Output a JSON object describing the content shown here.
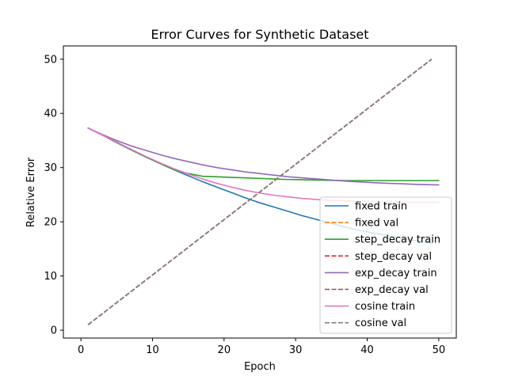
{
  "chart_data": {
    "type": "line",
    "title": "Error Curves for Synthetic Dataset",
    "xlabel": "Epoch",
    "ylabel": "Relative Error",
    "xlim": [
      -2.45,
      52.45
    ],
    "ylim": [
      -1.45,
      52.45
    ],
    "xticks": [
      0,
      10,
      20,
      30,
      40,
      50
    ],
    "yticks": [
      0,
      10,
      20,
      30,
      40,
      50
    ],
    "grid": false,
    "legend_position": "lower right",
    "series": [
      {
        "name": "fixed train",
        "color": "#1f77b4",
        "dash": "solid",
        "x": [
          1,
          3,
          5,
          7,
          9,
          11,
          13,
          15,
          17,
          19,
          21,
          23,
          25,
          27,
          29,
          31,
          33,
          35,
          37,
          39,
          41,
          43,
          45,
          47,
          49
        ],
        "y": [
          37.3,
          36.0,
          34.6,
          33.3,
          32.0,
          30.8,
          29.6,
          28.5,
          27.4,
          26.4,
          25.4,
          24.4,
          23.5,
          22.7,
          21.9,
          21.1,
          20.4,
          19.7,
          19.0,
          18.4,
          17.9,
          17.4,
          16.9,
          16.5,
          16.1
        ]
      },
      {
        "name": "fixed val",
        "color": "#ff7f0e",
        "dash": "dashed",
        "x": [
          1,
          49
        ],
        "y": [
          1.0,
          50.0
        ]
      },
      {
        "name": "step_decay train",
        "color": "#2ca02c",
        "dash": "solid",
        "x": [
          1,
          3,
          5,
          7,
          9,
          11,
          13,
          15,
          17,
          19,
          21,
          23,
          25,
          27,
          29,
          31,
          33,
          35,
          37,
          39,
          41,
          43,
          45,
          47,
          50
        ],
        "y": [
          37.3,
          36.0,
          34.6,
          33.3,
          32.0,
          30.8,
          29.6,
          28.9,
          28.4,
          28.3,
          28.2,
          28.1,
          28.0,
          27.9,
          27.8,
          27.75,
          27.7,
          27.65,
          27.6,
          27.6,
          27.6,
          27.6,
          27.6,
          27.6,
          27.6
        ]
      },
      {
        "name": "step_decay val",
        "color": "#d62728",
        "dash": "dashed",
        "x": [
          1,
          49
        ],
        "y": [
          1.0,
          50.0
        ]
      },
      {
        "name": "exp_decay train",
        "color": "#9467bd",
        "dash": "solid",
        "x": [
          1,
          3,
          5,
          7,
          9,
          11,
          13,
          15,
          17,
          19,
          21,
          23,
          25,
          27,
          29,
          31,
          33,
          35,
          37,
          39,
          41,
          43,
          45,
          47,
          50
        ],
        "y": [
          37.3,
          36.1,
          35.0,
          34.0,
          33.2,
          32.4,
          31.7,
          31.1,
          30.5,
          30.0,
          29.6,
          29.2,
          28.9,
          28.6,
          28.3,
          28.1,
          27.9,
          27.7,
          27.5,
          27.35,
          27.2,
          27.1,
          27.0,
          26.9,
          26.8
        ]
      },
      {
        "name": "exp_decay val",
        "color": "#8c564b",
        "dash": "dashed",
        "x": [
          1,
          49
        ],
        "y": [
          1.0,
          50.0
        ]
      },
      {
        "name": "cosine train",
        "color": "#e377c2",
        "dash": "solid",
        "x": [
          1,
          3,
          5,
          7,
          9,
          11,
          13,
          15,
          17,
          19,
          21,
          23,
          25,
          27,
          29,
          31,
          33,
          35,
          37,
          39,
          41,
          43,
          45,
          47,
          50
        ],
        "y": [
          37.3,
          36.0,
          34.7,
          33.4,
          32.1,
          30.9,
          29.8,
          28.8,
          27.9,
          27.1,
          26.4,
          25.8,
          25.3,
          24.9,
          24.6,
          24.3,
          24.1,
          23.95,
          23.85,
          23.75,
          23.7,
          23.65,
          23.6,
          23.6,
          23.6
        ]
      },
      {
        "name": "cosine val",
        "color": "#7f7f7f",
        "dash": "dashed",
        "x": [
          1,
          49
        ],
        "y": [
          1.0,
          50.0
        ]
      }
    ]
  }
}
